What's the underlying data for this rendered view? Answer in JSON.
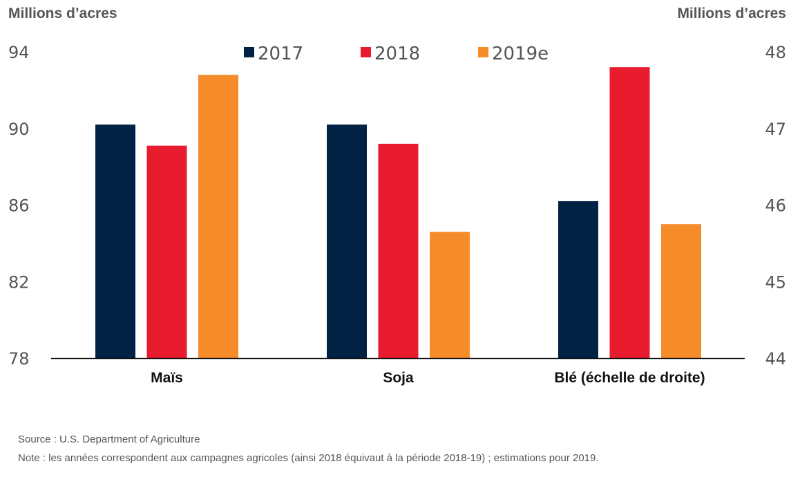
{
  "chart_data": {
    "type": "bar",
    "title": "",
    "ylabel_left": "Millions d’acres",
    "ylabel_right": "Millions d’acres",
    "xlabel": "",
    "categories": [
      "Maïs",
      "Soja",
      "Blé (échelle de droite)"
    ],
    "category_axis": [
      "left",
      "left",
      "right"
    ],
    "series": [
      {
        "name": "2017",
        "color": "#012244",
        "values": [
          90.2,
          90.2,
          46.05
        ]
      },
      {
        "name": "2018",
        "color": "#E81C2E",
        "values": [
          89.1,
          89.2,
          47.8
        ]
      },
      {
        "name": "2019e",
        "color": "#F68B29",
        "values": [
          92.8,
          84.6,
          45.75
        ]
      }
    ],
    "ylim_left": [
      78,
      94
    ],
    "yticks_left": [
      "78",
      "82",
      "86",
      "90",
      "94"
    ],
    "ylim_right": [
      44,
      48
    ],
    "yticks_right": [
      "44",
      "45",
      "46",
      "47",
      "48"
    ],
    "grid": false,
    "legend_position": "top-center"
  },
  "footer": {
    "source": "Source : U.S. Department of Agriculture",
    "note": "Note : les années correspondent aux campagnes agricoles (ainsi 2018 équivaut à la période 2018-19) ; estimations pour 2019."
  }
}
